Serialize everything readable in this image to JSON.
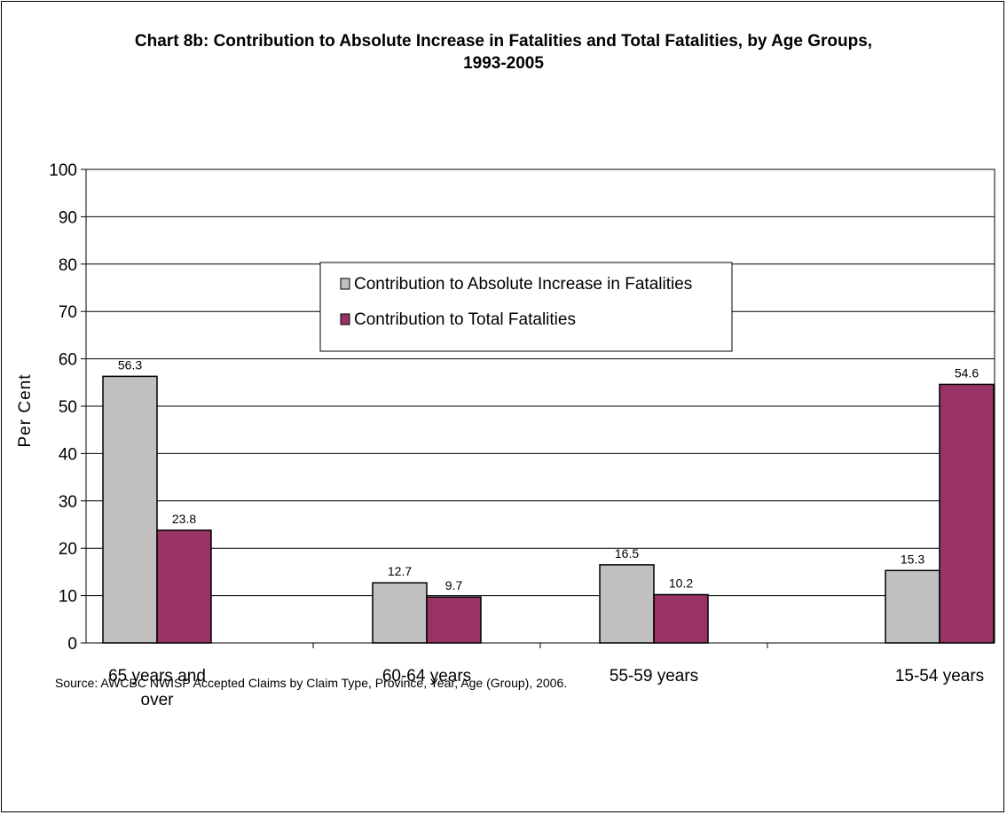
{
  "chart_data": {
    "type": "bar",
    "title_lines": [
      "Chart 8b: Contribution to Absolute Increase in Fatalities and Total Fatalities, by Age Groups,",
      "1993-2005"
    ],
    "ylabel": "Per Cent",
    "ylim": [
      0,
      100
    ],
    "yticks": [
      0,
      10,
      20,
      30,
      40,
      50,
      60,
      70,
      80,
      90,
      100
    ],
    "grid": true,
    "legend_position": "top-center",
    "categories": [
      [
        "65 years and",
        "over"
      ],
      [
        "60-64 years"
      ],
      [
        "55-59 years"
      ],
      [
        "15-54 years"
      ]
    ],
    "series": [
      {
        "name": "Contribution to Absolute Increase in Fatalities",
        "color": "#c0c0c0",
        "values": [
          56.3,
          12.7,
          16.5,
          15.3
        ],
        "labels": [
          "56.3",
          "12.7",
          "16.5",
          "15.3"
        ]
      },
      {
        "name": "Contribution to Total Fatalities",
        "color": "#993366",
        "values": [
          23.8,
          9.7,
          10.2,
          54.6
        ],
        "labels": [
          "23.8",
          "9.7",
          "10.2",
          "54.6"
        ]
      }
    ],
    "source": "Source: AWCBC NWISP Accepted Claims by Claim Type, Province, Year, Age (Group), 2006."
  }
}
